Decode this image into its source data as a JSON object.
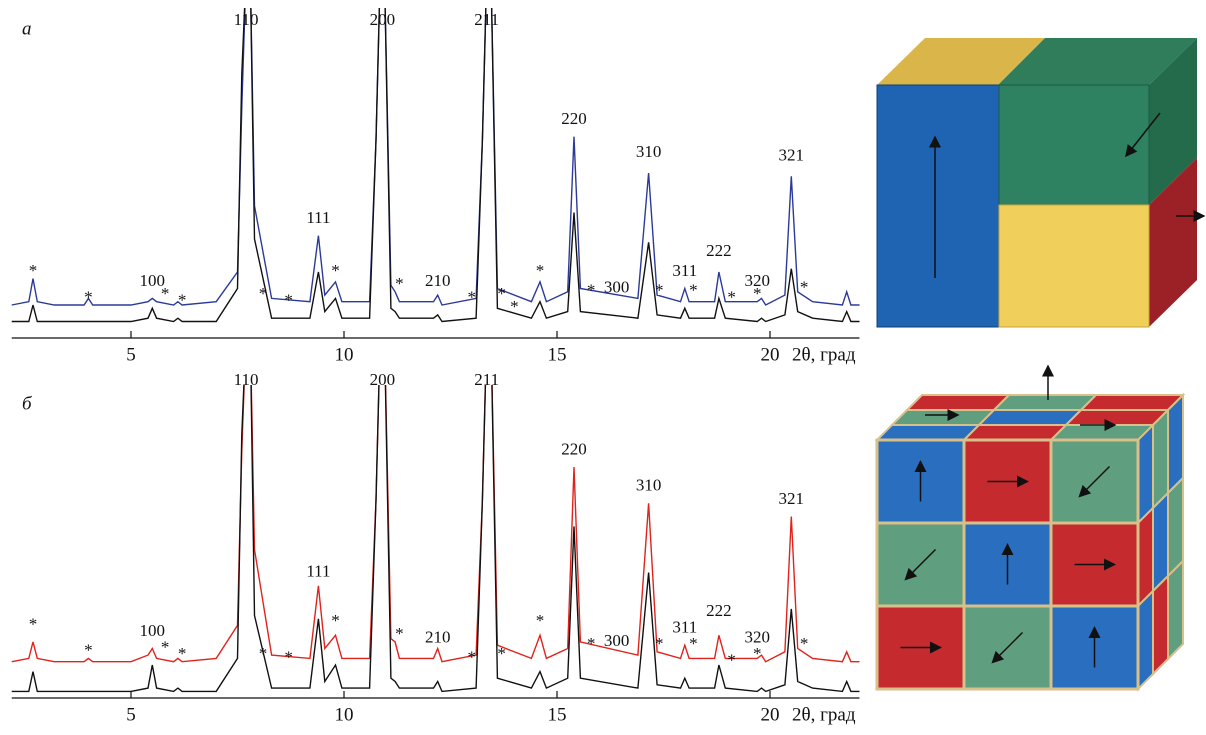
{
  "chart_data": [
    {
      "type": "line",
      "panel_label": "а",
      "x_label": "2θ, град",
      "xlim": [
        2.2,
        22.1
      ],
      "xticks": [
        5,
        10,
        15,
        20
      ],
      "ylim": [
        0,
        100
      ],
      "x": [
        2.2,
        2.6,
        2.7,
        2.8,
        3.2,
        3.9,
        4.0,
        4.1,
        5.0,
        5.4,
        5.5,
        5.6,
        6.0,
        6.1,
        6.2,
        7.0,
        7.5,
        7.6,
        7.7,
        7.8,
        7.9,
        8.3,
        9.2,
        9.4,
        9.55,
        9.8,
        9.95,
        10.6,
        10.75,
        10.85,
        10.95,
        11.1,
        11.2,
        11.3,
        12.1,
        12.2,
        12.3,
        13.1,
        13.25,
        13.35,
        13.45,
        13.6,
        14.4,
        14.6,
        14.75,
        15.25,
        15.4,
        15.55,
        16.9,
        17.15,
        17.35,
        17.9,
        18.0,
        18.1,
        18.7,
        18.8,
        18.95,
        19.7,
        19.8,
        19.9,
        20.35,
        20.5,
        20.65,
        21.0,
        21.7,
        21.8,
        21.9,
        22.1
      ],
      "series": [
        {
          "color": "#2b3a9a",
          "values": [
            10,
            11,
            18,
            11,
            10,
            10,
            12,
            10,
            10,
            11,
            12,
            11,
            10,
            11,
            10,
            11,
            20,
            70,
            110,
            110,
            40,
            12,
            11,
            31,
            13,
            17,
            11,
            11,
            60,
            110,
            110,
            16,
            14,
            11,
            11,
            13,
            10,
            12,
            60,
            110,
            110,
            15,
            11,
            17,
            11,
            14,
            61,
            15,
            12,
            50,
            13,
            11,
            15,
            11,
            11,
            20,
            11,
            11,
            12,
            10,
            13,
            49,
            14,
            11,
            10,
            14,
            10,
            10
          ]
        },
        {
          "color": "#111111",
          "values": [
            5,
            5,
            10,
            5,
            5,
            5,
            5,
            5,
            5,
            6,
            9,
            6,
            5,
            6,
            5,
            5,
            15,
            80,
            110,
            110,
            30,
            6,
            6,
            20,
            8,
            12,
            6,
            6,
            60,
            110,
            110,
            9,
            8,
            6,
            6,
            7,
            5,
            6,
            60,
            110,
            110,
            9,
            6,
            11,
            6,
            8,
            38,
            8,
            6,
            29,
            7,
            6,
            9,
            6,
            6,
            12,
            6,
            5,
            6,
            5,
            7,
            21,
            8,
            6,
            5,
            8,
            5,
            5
          ]
        }
      ],
      "annotations": [
        {
          "text": "110",
          "x": 7.7,
          "y": 96
        },
        {
          "text": "200",
          "x": 10.9,
          "y": 96
        },
        {
          "text": "211",
          "x": 13.35,
          "y": 96
        },
        {
          "text": "111",
          "x": 9.4,
          "y": 36
        },
        {
          "text": "220",
          "x": 15.4,
          "y": 66
        },
        {
          "text": "310",
          "x": 17.15,
          "y": 56
        },
        {
          "text": "321",
          "x": 20.5,
          "y": 55
        },
        {
          "text": "100",
          "x": 5.5,
          "y": 17
        },
        {
          "text": "210",
          "x": 12.2,
          "y": 17
        },
        {
          "text": "300",
          "x": 16.4,
          "y": 15
        },
        {
          "text": "311",
          "x": 18.0,
          "y": 20
        },
        {
          "text": "222",
          "x": 18.8,
          "y": 26
        },
        {
          "text": "320",
          "x": 19.7,
          "y": 17
        },
        {
          "text": "*",
          "x": 2.7,
          "y": 20
        },
        {
          "text": "*",
          "x": 4.0,
          "y": 12
        },
        {
          "text": "*",
          "x": 5.8,
          "y": 13
        },
        {
          "text": "*",
          "x": 6.2,
          "y": 11
        },
        {
          "text": "*",
          "x": 8.1,
          "y": 13
        },
        {
          "text": "*",
          "x": 8.7,
          "y": 11
        },
        {
          "text": "*",
          "x": 9.8,
          "y": 20
        },
        {
          "text": "*",
          "x": 11.3,
          "y": 16
        },
        {
          "text": "*",
          "x": 13.0,
          "y": 12
        },
        {
          "text": "*",
          "x": 13.7,
          "y": 13
        },
        {
          "text": "*",
          "x": 14.0,
          "y": 9
        },
        {
          "text": "*",
          "x": 14.6,
          "y": 20
        },
        {
          "text": "*",
          "x": 15.8,
          "y": 14
        },
        {
          "text": "*",
          "x": 17.4,
          "y": 14
        },
        {
          "text": "*",
          "x": 18.2,
          "y": 14
        },
        {
          "text": "*",
          "x": 19.1,
          "y": 12
        },
        {
          "text": "*",
          "x": 19.7,
          "y": 13
        },
        {
          "text": "*",
          "x": 20.8,
          "y": 15
        }
      ]
    },
    {
      "type": "line",
      "panel_label": "б",
      "x_label": "2θ, град",
      "xlim": [
        2.2,
        22.1
      ],
      "xticks": [
        5,
        10,
        15,
        20
      ],
      "ylim": [
        0,
        100
      ],
      "x": [
        2.2,
        2.6,
        2.7,
        2.8,
        3.2,
        3.9,
        4.0,
        4.1,
        5.0,
        5.4,
        5.5,
        5.6,
        6.0,
        6.1,
        6.2,
        7.0,
        7.5,
        7.6,
        7.7,
        7.8,
        7.9,
        8.3,
        9.2,
        9.4,
        9.55,
        9.8,
        9.95,
        10.6,
        10.75,
        10.85,
        10.95,
        11.1,
        11.2,
        11.3,
        12.1,
        12.2,
        12.3,
        13.1,
        13.25,
        13.35,
        13.45,
        13.6,
        14.4,
        14.6,
        14.75,
        15.25,
        15.4,
        15.55,
        16.9,
        17.15,
        17.35,
        17.9,
        18.0,
        18.1,
        18.7,
        18.8,
        18.95,
        19.7,
        19.8,
        19.9,
        20.35,
        20.5,
        20.65,
        21.0,
        21.7,
        21.8,
        21.9,
        22.1
      ],
      "series": [
        {
          "color": "#e0231c",
          "values": [
            11,
            12,
            17,
            12,
            11,
            11,
            12,
            11,
            11,
            13,
            15,
            12,
            11,
            12,
            11,
            12,
            22,
            75,
            110,
            110,
            45,
            13,
            12,
            34,
            15,
            19,
            12,
            12,
            60,
            110,
            110,
            18,
            17,
            12,
            12,
            15,
            11,
            13,
            60,
            110,
            110,
            16,
            12,
            19,
            12,
            15,
            70,
            17,
            13,
            59,
            14,
            12,
            16,
            12,
            12,
            19,
            12,
            12,
            13,
            11,
            14,
            55,
            15,
            12,
            11,
            14,
            11,
            11
          ]
        },
        {
          "color": "#111111",
          "values": [
            2,
            2,
            8,
            2,
            2,
            2,
            2,
            2,
            2,
            3,
            10,
            3,
            2,
            3,
            2,
            2,
            12,
            80,
            110,
            110,
            25,
            3,
            3,
            24,
            5,
            10,
            3,
            3,
            60,
            110,
            110,
            6,
            5,
            3,
            3,
            5,
            2,
            3,
            60,
            110,
            110,
            6,
            3,
            8,
            3,
            6,
            52,
            6,
            3,
            38,
            4,
            3,
            6,
            3,
            3,
            10,
            3,
            2,
            3,
            2,
            4,
            27,
            5,
            3,
            2,
            5,
            2,
            2
          ]
        }
      ],
      "annotations": [
        {
          "text": "110",
          "x": 7.7,
          "y": 96
        },
        {
          "text": "200",
          "x": 10.9,
          "y": 96
        },
        {
          "text": "211",
          "x": 13.35,
          "y": 96
        },
        {
          "text": "111",
          "x": 9.4,
          "y": 38
        },
        {
          "text": "220",
          "x": 15.4,
          "y": 75
        },
        {
          "text": "310",
          "x": 17.15,
          "y": 64
        },
        {
          "text": "321",
          "x": 20.5,
          "y": 60
        },
        {
          "text": "100",
          "x": 5.5,
          "y": 20
        },
        {
          "text": "210",
          "x": 12.2,
          "y": 18
        },
        {
          "text": "300",
          "x": 16.4,
          "y": 17
        },
        {
          "text": "311",
          "x": 18.0,
          "y": 21
        },
        {
          "text": "222",
          "x": 18.8,
          "y": 26
        },
        {
          "text": "320",
          "x": 19.7,
          "y": 18
        },
        {
          "text": "*",
          "x": 2.7,
          "y": 22
        },
        {
          "text": "*",
          "x": 4.0,
          "y": 14
        },
        {
          "text": "*",
          "x": 5.8,
          "y": 15
        },
        {
          "text": "*",
          "x": 6.2,
          "y": 13
        },
        {
          "text": "*",
          "x": 8.1,
          "y": 13
        },
        {
          "text": "*",
          "x": 8.7,
          "y": 12
        },
        {
          "text": "*",
          "x": 9.8,
          "y": 23
        },
        {
          "text": "*",
          "x": 11.3,
          "y": 19
        },
        {
          "text": "*",
          "x": 13.0,
          "y": 12
        },
        {
          "text": "*",
          "x": 13.7,
          "y": 13
        },
        {
          "text": "*",
          "x": 14.6,
          "y": 23
        },
        {
          "text": "*",
          "x": 15.8,
          "y": 16
        },
        {
          "text": "*",
          "x": 17.4,
          "y": 16
        },
        {
          "text": "*",
          "x": 18.2,
          "y": 16
        },
        {
          "text": "*",
          "x": 19.1,
          "y": 11
        },
        {
          "text": "*",
          "x": 19.7,
          "y": 13
        },
        {
          "text": "*",
          "x": 20.8,
          "y": 16
        }
      ]
    }
  ]
}
